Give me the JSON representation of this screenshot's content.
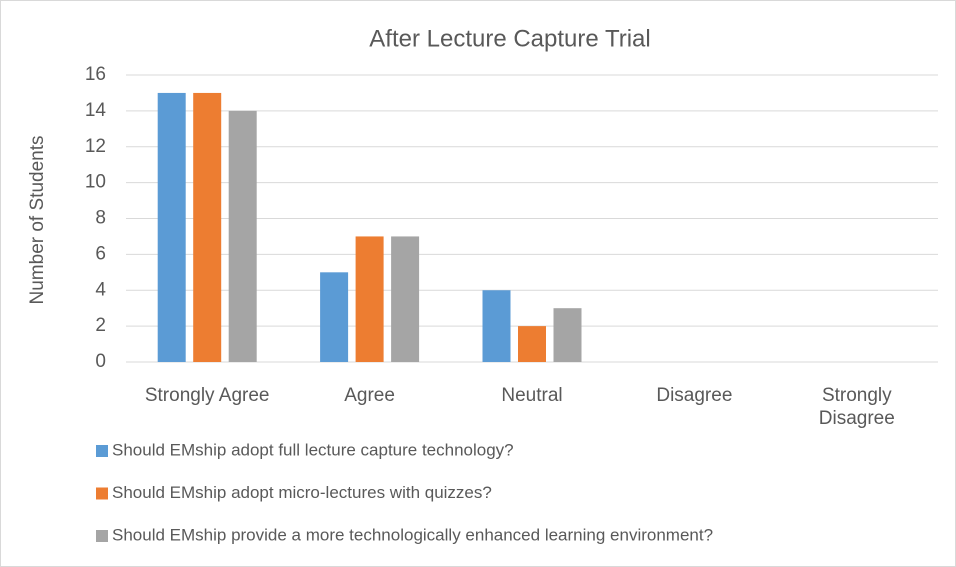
{
  "chart_data": {
    "type": "bar",
    "title": "After Lecture Capture Trial",
    "y_label": "Number of Students",
    "categories": [
      "Strongly Agree",
      "Agree",
      "Neutral",
      "Disagree",
      "Strongly Disagree"
    ],
    "series": [
      {
        "name": "Should EMship adopt full lecture capture technology?",
        "color": "#5b9bd5",
        "values": [
          15,
          5,
          4,
          0,
          0
        ]
      },
      {
        "name": "Should EMship adopt micro-lectures with quizzes?",
        "color": "#ed7d31",
        "values": [
          15,
          7,
          2,
          0,
          0
        ]
      },
      {
        "name": "Should EMship provide a more technologically enhanced learning environment?",
        "color": "#a5a5a5",
        "values": [
          14,
          7,
          3,
          0,
          0
        ]
      }
    ],
    "ylim": [
      0,
      16
    ],
    "yticks": [
      0,
      2,
      4,
      6,
      8,
      10,
      12,
      14,
      16
    ],
    "grid": true
  }
}
